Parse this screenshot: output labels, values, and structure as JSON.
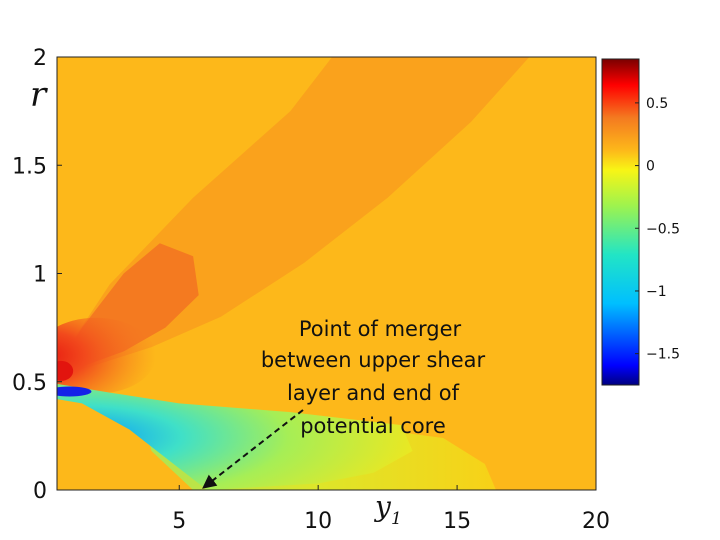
{
  "chart_data": {
    "type": "heatmap",
    "xlabel": "y",
    "xlabel_subscript": "1",
    "ylabel": "r",
    "xlim": [
      0.6,
      20
    ],
    "ylim": [
      0,
      2
    ],
    "x_ticks": [
      5,
      10,
      15,
      20
    ],
    "y_ticks": [
      0,
      0.5,
      1,
      1.5,
      2
    ],
    "y_tick_labels": [
      "0",
      "0.5",
      "1",
      "1.5",
      "2"
    ],
    "colorbar": {
      "range": [
        -1.75,
        0.85
      ],
      "ticks": [
        0.5,
        0,
        -0.5,
        -1,
        -1.5
      ],
      "tick_labels": [
        "0.5",
        "0",
        "−0.5",
        "−1",
        "−1.5"
      ],
      "colormap": "jet"
    },
    "approximate_regions": [
      {
        "feature": "background",
        "value": 0.08
      },
      {
        "feature": "upper band",
        "value": 0.15
      },
      {
        "feature": "upper shear layer",
        "value": 0.3
      },
      {
        "feature": "peak near lip",
        "value": 0.7
      },
      {
        "feature": "minimum near lip",
        "value": -1.6
      },
      {
        "feature": "potential core",
        "value": -0.5
      },
      {
        "feature": "downstream wake",
        "value": -0.1
      }
    ],
    "annotation": {
      "lines": [
        "Point of merger",
        "between upper shear",
        "layer and end of",
        "potential core"
      ],
      "arrow_to": {
        "x": 5.9,
        "y": 0
      }
    },
    "colors": {
      "background": "#FDB81A",
      "upper_band": "#FAA21C",
      "shear_layer": "#F47A20"
    }
  }
}
